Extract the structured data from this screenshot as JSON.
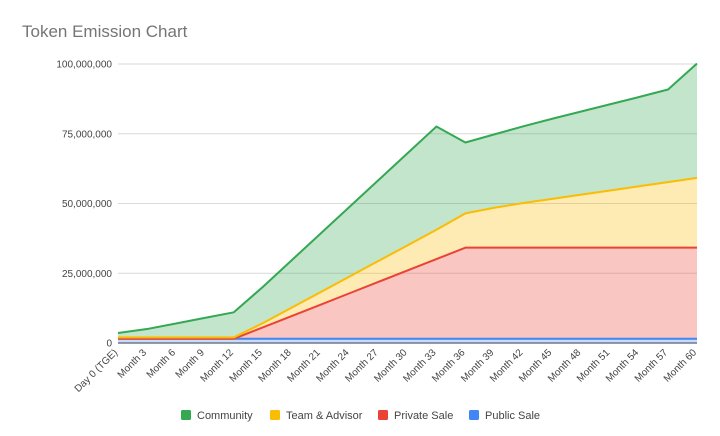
{
  "chart_data": {
    "type": "area",
    "stacked": true,
    "title": "Token Emission Chart",
    "xlabel": "",
    "ylabel": "",
    "ylim": [
      0,
      100000000
    ],
    "y_ticks": [
      "0",
      "25,000,000",
      "50,000,000",
      "75,000,000",
      "100,000,000"
    ],
    "y_tick_values": [
      0,
      25000000,
      50000000,
      75000000,
      100000000
    ],
    "categories": [
      "Day 0 (TGE)",
      "Month 3",
      "Month 6",
      "Month 9",
      "Month 12",
      "Month 15",
      "Month 18",
      "Month 21",
      "Month 24",
      "Month 27",
      "Month 30",
      "Month 33",
      "Month 36",
      "Month 39",
      "Month 42",
      "Month 45",
      "Month 48",
      "Month 51",
      "Month 54",
      "Month 57",
      "Month 60"
    ],
    "grid": true,
    "legend_position": "bottom",
    "series": [
      {
        "name": "Public Sale",
        "color": "#4285f4",
        "values": [
          1500000,
          1500000,
          1500000,
          1500000,
          1500000,
          1500000,
          1500000,
          1500000,
          1500000,
          1500000,
          1500000,
          1500000,
          1500000,
          1500000,
          1500000,
          1500000,
          1500000,
          1500000,
          1500000,
          1500000,
          1500000
        ]
      },
      {
        "name": "Private Sale",
        "color": "#ea4335",
        "values": [
          0,
          0,
          0,
          0,
          0,
          4083333,
          8166667,
          12250000,
          16333333,
          20416667,
          24500000,
          28583333,
          32666667,
          32666667,
          32666667,
          32666667,
          32666667,
          32666667,
          32666667,
          32666667,
          32666667
        ]
      },
      {
        "name": "Team & Advisor",
        "color": "#fbbc04",
        "values": [
          500000,
          500000,
          500000,
          500000,
          500000,
          1500000,
          3000000,
          4500000,
          6000000,
          7500000,
          9000000,
          10500000,
          12300000,
          14300000,
          16000000,
          17500000,
          19000000,
          20500000,
          22000000,
          23500000,
          25000000
        ]
      },
      {
        "name": "Community",
        "color": "#34a853",
        "values": [
          1600000,
          3000000,
          5000000,
          7000000,
          9000000,
          13000000,
          17000000,
          21000000,
          25000000,
          29000000,
          33000000,
          37000000,
          25400000,
          26300000,
          27500000,
          28700000,
          29800000,
          30900000,
          32000000,
          33200000,
          41000000
        ]
      }
    ],
    "legend_order": [
      "Community",
      "Team & Advisor",
      "Private Sale",
      "Public Sale"
    ]
  }
}
